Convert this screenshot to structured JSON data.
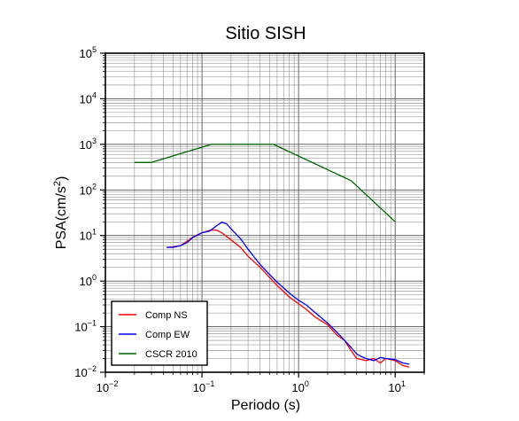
{
  "chart_data": {
    "type": "line",
    "title": "Sitio SISH",
    "xlabel": "Periodo (s)",
    "ylabel": "PSA(cm/s²)",
    "xscale": "log",
    "yscale": "log",
    "xlim": [
      0.01,
      20
    ],
    "ylim": [
      0.01,
      100000
    ],
    "grid": true,
    "legend_position": "bottom-left",
    "x_ticks": [
      {
        "value": 0.01,
        "base": "10",
        "exp": "−2"
      },
      {
        "value": 0.1,
        "base": "10",
        "exp": "−1"
      },
      {
        "value": 1,
        "base": "10",
        "exp": "0"
      },
      {
        "value": 10,
        "base": "10",
        "exp": "1"
      }
    ],
    "y_ticks": [
      {
        "value": 0.01,
        "base": "10",
        "exp": "−2"
      },
      {
        "value": 0.1,
        "base": "10",
        "exp": "−1"
      },
      {
        "value": 1,
        "base": "10",
        "exp": "0"
      },
      {
        "value": 10,
        "base": "10",
        "exp": "1"
      },
      {
        "value": 100,
        "base": "10",
        "exp": "2"
      },
      {
        "value": 1000,
        "base": "10",
        "exp": "3"
      },
      {
        "value": 10000,
        "base": "10",
        "exp": "4"
      },
      {
        "value": 100000,
        "base": "10",
        "exp": "5"
      }
    ],
    "series": [
      {
        "name": "Comp NS",
        "color": "#ff0000",
        "points": [
          [
            0.043,
            5.5
          ],
          [
            0.05,
            5.6
          ],
          [
            0.06,
            6.0
          ],
          [
            0.07,
            7.5
          ],
          [
            0.08,
            9.2
          ],
          [
            0.1,
            11.5
          ],
          [
            0.12,
            13.0
          ],
          [
            0.14,
            13.2
          ],
          [
            0.16,
            11.5
          ],
          [
            0.2,
            8.0
          ],
          [
            0.25,
            5.5
          ],
          [
            0.3,
            3.5
          ],
          [
            0.4,
            2.0
          ],
          [
            0.5,
            1.2
          ],
          [
            0.6,
            0.8
          ],
          [
            0.8,
            0.45
          ],
          [
            1.0,
            0.32
          ],
          [
            1.2,
            0.24
          ],
          [
            1.5,
            0.16
          ],
          [
            2.0,
            0.11
          ],
          [
            2.5,
            0.065
          ],
          [
            3.0,
            0.05
          ],
          [
            3.5,
            0.03
          ],
          [
            4.0,
            0.02
          ],
          [
            5.0,
            0.018
          ],
          [
            6.0,
            0.02
          ],
          [
            7.0,
            0.016
          ],
          [
            8.0,
            0.02
          ],
          [
            10.0,
            0.018
          ],
          [
            12.0,
            0.014
          ],
          [
            14.0,
            0.013
          ]
        ]
      },
      {
        "name": "Comp EW",
        "color": "#0000ff",
        "points": [
          [
            0.043,
            5.5
          ],
          [
            0.05,
            5.5
          ],
          [
            0.06,
            6.0
          ],
          [
            0.07,
            7.0
          ],
          [
            0.08,
            9.0
          ],
          [
            0.1,
            11.5
          ],
          [
            0.12,
            12.5
          ],
          [
            0.14,
            16.0
          ],
          [
            0.16,
            19.5
          ],
          [
            0.18,
            18.0
          ],
          [
            0.2,
            14.0
          ],
          [
            0.25,
            8.5
          ],
          [
            0.3,
            5.0
          ],
          [
            0.35,
            3.3
          ],
          [
            0.4,
            2.3
          ],
          [
            0.5,
            1.4
          ],
          [
            0.6,
            0.95
          ],
          [
            0.8,
            0.55
          ],
          [
            1.0,
            0.38
          ],
          [
            1.2,
            0.3
          ],
          [
            1.5,
            0.2
          ],
          [
            2.0,
            0.12
          ],
          [
            2.5,
            0.075
          ],
          [
            3.0,
            0.05
          ],
          [
            3.5,
            0.035
          ],
          [
            4.0,
            0.025
          ],
          [
            4.5,
            0.022
          ],
          [
            5.0,
            0.02
          ],
          [
            6.0,
            0.018
          ],
          [
            7.0,
            0.021
          ],
          [
            8.0,
            0.02
          ],
          [
            10.0,
            0.019
          ],
          [
            12.0,
            0.016
          ],
          [
            14.0,
            0.015
          ]
        ]
      },
      {
        "name": "CSCR 2010",
        "color": "#006400",
        "points": [
          [
            0.02,
            400
          ],
          [
            0.03,
            400
          ],
          [
            0.125,
            1000
          ],
          [
            0.55,
            1000
          ],
          [
            3.5,
            160
          ],
          [
            10.0,
            20
          ]
        ]
      }
    ]
  }
}
